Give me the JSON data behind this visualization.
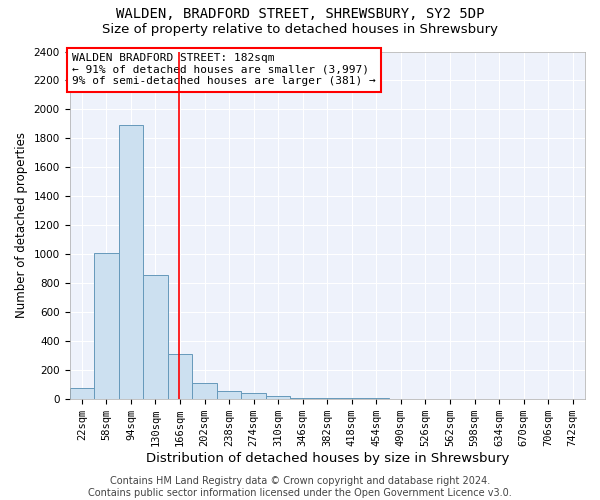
{
  "title1": "WALDEN, BRADFORD STREET, SHREWSBURY, SY2 5DP",
  "title2": "Size of property relative to detached houses in Shrewsbury",
  "xlabel": "Distribution of detached houses by size in Shrewsbury",
  "ylabel": "Number of detached properties",
  "bin_labels": [
    "22sqm",
    "58sqm",
    "94sqm",
    "130sqm",
    "166sqm",
    "202sqm",
    "238sqm",
    "274sqm",
    "310sqm",
    "346sqm",
    "382sqm",
    "418sqm",
    "454sqm",
    "490sqm",
    "526sqm",
    "562sqm",
    "598sqm",
    "634sqm",
    "670sqm",
    "706sqm",
    "742sqm"
  ],
  "bin_edges": [
    22,
    58,
    94,
    130,
    166,
    202,
    238,
    274,
    310,
    346,
    382,
    418,
    454,
    490,
    526,
    562,
    598,
    634,
    670,
    706,
    742
  ],
  "bar_heights": [
    80,
    1010,
    1890,
    860,
    310,
    115,
    55,
    40,
    25,
    10,
    10,
    5,
    5,
    2,
    2,
    0,
    0,
    0,
    0,
    0,
    0
  ],
  "bar_color": "#cce0f0",
  "bar_edge_color": "#6699bb",
  "red_line_x": 182,
  "ylim": [
    0,
    2400
  ],
  "yticks": [
    0,
    200,
    400,
    600,
    800,
    1000,
    1200,
    1400,
    1600,
    1800,
    2000,
    2200,
    2400
  ],
  "annotation_text": "WALDEN BRADFORD STREET: 182sqm\n← 91% of detached houses are smaller (3,997)\n9% of semi-detached houses are larger (381) →",
  "annotation_box_color": "white",
  "annotation_box_edge_color": "red",
  "footer1": "Contains HM Land Registry data © Crown copyright and database right 2024.",
  "footer2": "Contains public sector information licensed under the Open Government Licence v3.0.",
  "background_color": "#eef2fb",
  "grid_color": "white",
  "title1_fontsize": 10,
  "title2_fontsize": 9.5,
  "xlabel_fontsize": 9.5,
  "ylabel_fontsize": 8.5,
  "annotation_fontsize": 8,
  "footer_fontsize": 7,
  "tick_fontsize": 7.5
}
